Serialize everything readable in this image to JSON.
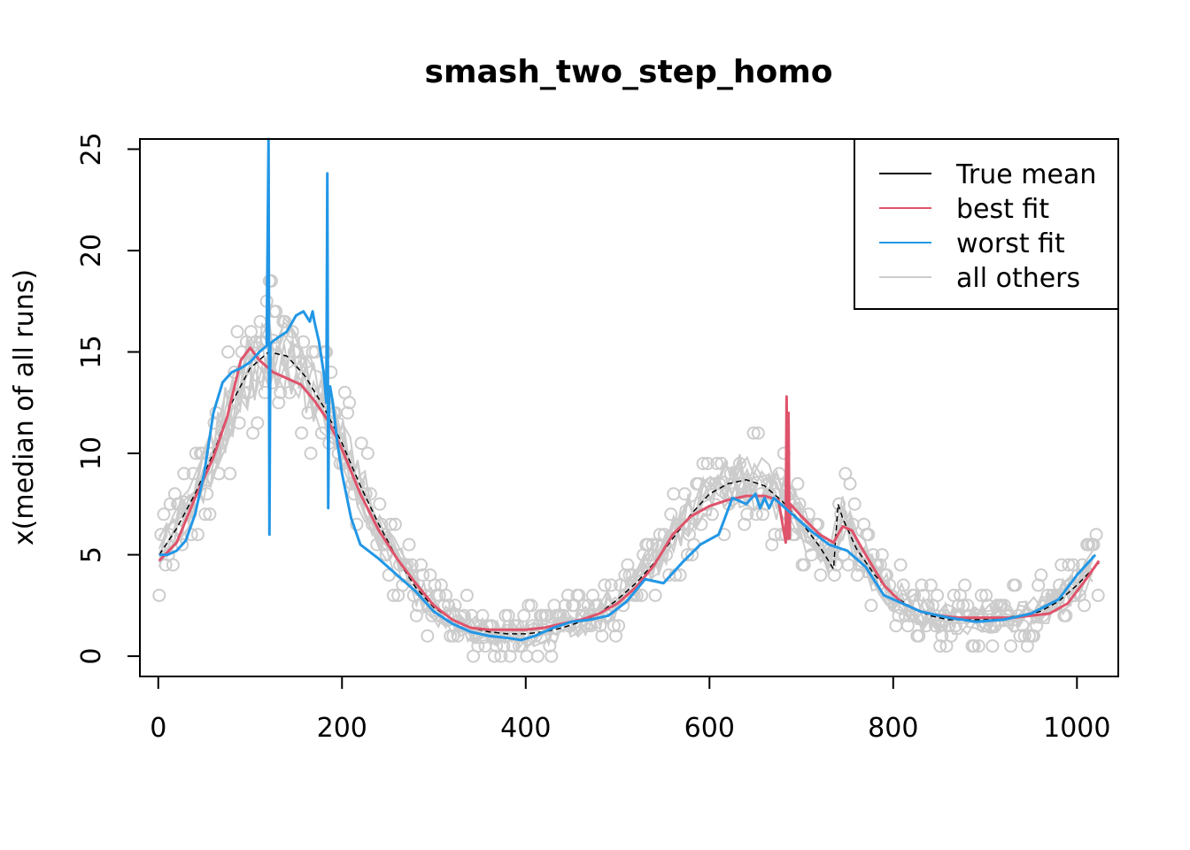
{
  "chart_data": {
    "type": "line",
    "title": "smash_two_step_homo",
    "xlabel": "",
    "ylabel": "x(median of all runs)",
    "xlim": [
      -20,
      1045
    ],
    "ylim": [
      -1,
      25.5
    ],
    "xticks": [
      0,
      200,
      400,
      600,
      800,
      1000
    ],
    "xtick_labels": [
      "0",
      "200",
      "400",
      "600",
      "800",
      "1000"
    ],
    "yticks": [
      0,
      5,
      10,
      15,
      20,
      25
    ],
    "ytick_labels": [
      "0",
      "5",
      "10",
      "15",
      "20",
      "25"
    ],
    "grid": false,
    "legend_position": "top-right",
    "colors": {
      "true_mean": "#000000",
      "best_fit": "#DF536B",
      "worst_fit": "#2297E6",
      "all_others": "#CCCCCC"
    },
    "legend": [
      {
        "label": "True mean",
        "color": "#000000"
      },
      {
        "label": "best fit",
        "color": "#DF536B"
      },
      {
        "label": "worst fit",
        "color": "#2297E6"
      },
      {
        "label": "all others",
        "color": "#CCCCCC"
      }
    ],
    "series": [
      {
        "name": "True mean",
        "x": [
          1,
          20,
          40,
          60,
          80,
          100,
          120,
          140,
          160,
          180,
          200,
          220,
          240,
          260,
          280,
          300,
          320,
          340,
          360,
          380,
          400,
          420,
          440,
          460,
          480,
          500,
          520,
          540,
          560,
          580,
          600,
          620,
          640,
          660,
          680,
          700,
          720,
          735,
          740,
          745,
          760,
          780,
          800,
          820,
          840,
          860,
          880,
          900,
          920,
          940,
          960,
          980,
          1000,
          1024
        ],
        "y": [
          5.0,
          6.3,
          8.0,
          10.0,
          12.5,
          14.2,
          15.0,
          14.8,
          13.8,
          12.3,
          10.5,
          8.4,
          6.5,
          4.8,
          3.4,
          2.4,
          1.8,
          1.4,
          1.2,
          1.1,
          1.1,
          1.2,
          1.4,
          1.7,
          2.1,
          2.8,
          3.6,
          4.6,
          5.8,
          7.0,
          8.0,
          8.5,
          8.7,
          8.4,
          7.6,
          6.6,
          5.4,
          4.3,
          7.5,
          6.8,
          5.3,
          4.0,
          3.0,
          2.4,
          2.0,
          1.8,
          1.8,
          1.8,
          1.9,
          2.0,
          2.2,
          2.7,
          3.5,
          4.6
        ]
      },
      {
        "name": "best fit",
        "x": [
          1,
          20,
          40,
          60,
          75,
          90,
          100,
          110,
          125,
          140,
          155,
          170,
          185,
          200,
          220,
          240,
          260,
          280,
          300,
          320,
          340,
          360,
          380,
          400,
          420,
          440,
          460,
          480,
          500,
          520,
          540,
          560,
          580,
          600,
          620,
          640,
          660,
          675,
          683,
          684,
          685,
          686,
          687,
          688,
          690,
          700,
          720,
          735,
          745,
          755,
          770,
          790,
          810,
          830,
          850,
          870,
          890,
          910,
          930,
          950,
          970,
          990,
          1010,
          1024
        ],
        "y": [
          4.7,
          5.6,
          7.8,
          9.8,
          11.8,
          14.6,
          15.2,
          14.6,
          14.0,
          13.7,
          13.4,
          12.6,
          11.6,
          10.2,
          8.0,
          6.2,
          4.8,
          3.6,
          2.5,
          1.8,
          1.4,
          1.3,
          1.3,
          1.3,
          1.4,
          1.6,
          1.8,
          2.1,
          2.6,
          3.4,
          4.5,
          6.0,
          6.9,
          7.4,
          7.7,
          7.9,
          7.9,
          7.7,
          5.6,
          12.8,
          5.8,
          12.0,
          5.8,
          7.5,
          7.4,
          6.9,
          6.0,
          5.6,
          6.4,
          6.2,
          5.0,
          3.5,
          2.6,
          2.2,
          2.0,
          1.9,
          1.9,
          1.9,
          1.9,
          2.0,
          2.1,
          2.6,
          3.8,
          4.7
        ]
      },
      {
        "name": "worst fit",
        "x": [
          1,
          10,
          20,
          30,
          40,
          50,
          60,
          70,
          80,
          90,
          100,
          110,
          118,
          120,
          121,
          122,
          124,
          130,
          140,
          150,
          158,
          165,
          168,
          170,
          175,
          180,
          183,
          184,
          185,
          186,
          187,
          190,
          195,
          200,
          210,
          220,
          240,
          260,
          280,
          300,
          320,
          340,
          360,
          380,
          395,
          410,
          430,
          450,
          470,
          490,
          510,
          530,
          550,
          570,
          590,
          610,
          625,
          640,
          650,
          655,
          660,
          665,
          670,
          690,
          710,
          730,
          750,
          770,
          790,
          810,
          830,
          860,
          890,
          920,
          950,
          980,
          1000,
          1020
        ],
        "y": [
          5.0,
          5.0,
          5.2,
          5.7,
          7.0,
          9.0,
          12.0,
          13.5,
          14.0,
          14.2,
          14.5,
          15.0,
          15.3,
          25.5,
          6.0,
          15.4,
          15.5,
          15.7,
          16.0,
          16.8,
          17.0,
          16.5,
          17.0,
          16.5,
          15.5,
          14.0,
          12.5,
          23.8,
          7.3,
          13.0,
          13.3,
          12.5,
          10.5,
          9.0,
          6.8,
          5.5,
          4.8,
          4.0,
          3.2,
          2.2,
          1.6,
          1.2,
          1.0,
          0.9,
          0.8,
          1.0,
          1.4,
          1.7,
          1.8,
          2.0,
          2.7,
          3.8,
          3.6,
          4.6,
          5.5,
          6.0,
          7.8,
          7.5,
          8.0,
          7.3,
          7.8,
          7.3,
          7.8,
          7.0,
          6.2,
          5.5,
          5.2,
          4.4,
          3.0,
          2.6,
          2.2,
          1.9,
          1.7,
          1.8,
          2.1,
          2.8,
          4.0,
          5.0
        ]
      }
    ]
  }
}
